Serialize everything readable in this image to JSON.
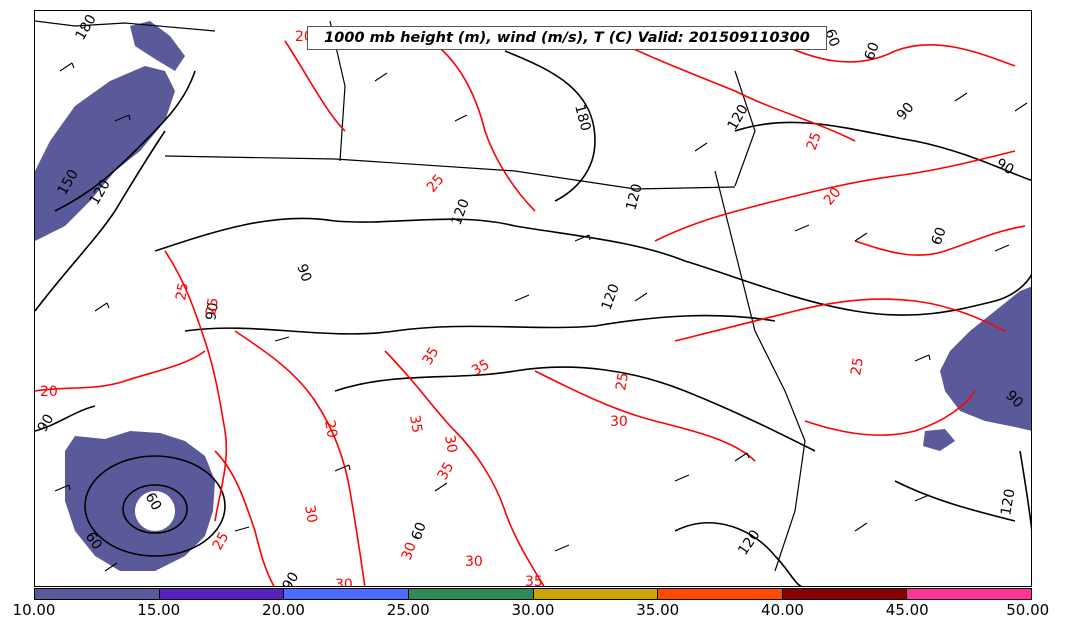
{
  "title": "1000 mb height (m), wind (m/s), T (C) Valid: 201509110300",
  "colorbar": {
    "ticks": [
      "10.00",
      "15.00",
      "20.00",
      "25.00",
      "30.00",
      "35.00",
      "40.00",
      "45.00",
      "50.00"
    ],
    "colors": [
      "#5a5a9a",
      "#5a1fbf",
      "#4a6cff",
      "#2e8b57",
      "#c8a800",
      "#ff4a00",
      "#8b0000",
      "#ff3399"
    ]
  },
  "contour_labels": {
    "height": [
      "180",
      "150",
      "120",
      "90",
      "60",
      "60",
      "90",
      "120",
      "120",
      "90",
      "90",
      "60",
      "60",
      "60",
      "90",
      "180",
      "120",
      "120",
      "120",
      "60",
      "90",
      "90",
      "120"
    ],
    "temperature": [
      "20",
      "25",
      "25",
      "25",
      "30",
      "30",
      "30",
      "35",
      "35",
      "25",
      "30",
      "25",
      "20",
      "25",
      "20",
      "20",
      "30",
      "35",
      "35",
      "35",
      "30",
      "25"
    ]
  },
  "colors": {
    "height_contour": "#000000",
    "temperature_contour": "#ff0000",
    "wind_shading": "#5a5a9a"
  }
}
